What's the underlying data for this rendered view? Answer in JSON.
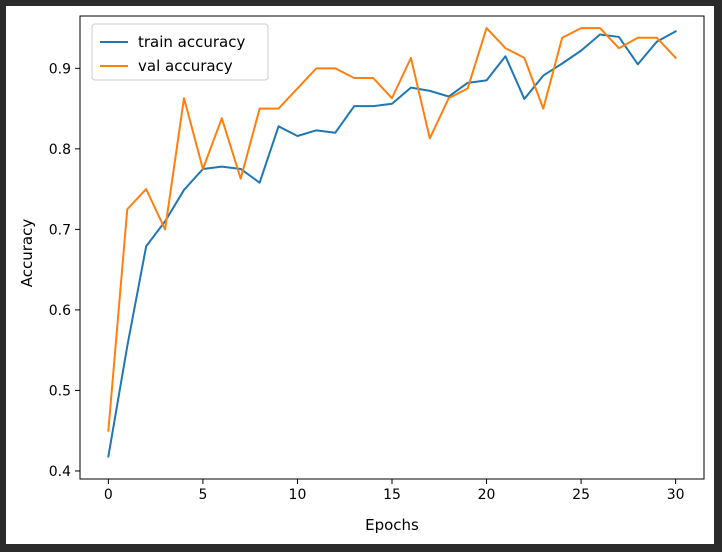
{
  "chart_data": {
    "type": "line",
    "title": "",
    "xlabel": "Epochs",
    "ylabel": "Accuracy",
    "xlim": [
      -1.5,
      31.5
    ],
    "ylim": [
      0.39,
      0.965
    ],
    "xticks": [
      0,
      5,
      10,
      15,
      20,
      25,
      30
    ],
    "yticks": [
      0.4,
      0.5,
      0.6,
      0.7,
      0.8,
      0.9
    ],
    "xtick_labels": [
      "0",
      "5",
      "10",
      "15",
      "20",
      "25",
      "30"
    ],
    "ytick_labels": [
      "0.4",
      "0.5",
      "0.6",
      "0.7",
      "0.8",
      "0.9"
    ],
    "grid": false,
    "legend": "top-left",
    "x": [
      0,
      1,
      2,
      3,
      4,
      5,
      6,
      7,
      8,
      9,
      10,
      11,
      12,
      13,
      14,
      15,
      16,
      17,
      18,
      19,
      20,
      21,
      22,
      23,
      24,
      25,
      26,
      27,
      28,
      29,
      30
    ],
    "series": [
      {
        "name": "train accuracy",
        "color": "#1f77b4",
        "values": [
          0.418,
          0.555,
          0.679,
          0.71,
          0.749,
          0.775,
          0.778,
          0.775,
          0.758,
          0.828,
          0.816,
          0.823,
          0.82,
          0.853,
          0.853,
          0.856,
          0.876,
          0.872,
          0.865,
          0.882,
          0.885,
          0.915,
          0.862,
          0.891,
          0.906,
          0.922,
          0.942,
          0.939,
          0.905,
          0.933,
          0.946
        ]
      },
      {
        "name": "val accuracy",
        "color": "#ff7f0e",
        "values": [
          0.45,
          0.725,
          0.75,
          0.7,
          0.863,
          0.775,
          0.838,
          0.763,
          0.85,
          0.85,
          0.875,
          0.9,
          0.9,
          0.888,
          0.888,
          0.863,
          0.913,
          0.813,
          0.863,
          0.875,
          0.95,
          0.925,
          0.913,
          0.85,
          0.938,
          0.95,
          0.95,
          0.925,
          0.938,
          0.938,
          0.913
        ]
      }
    ]
  }
}
